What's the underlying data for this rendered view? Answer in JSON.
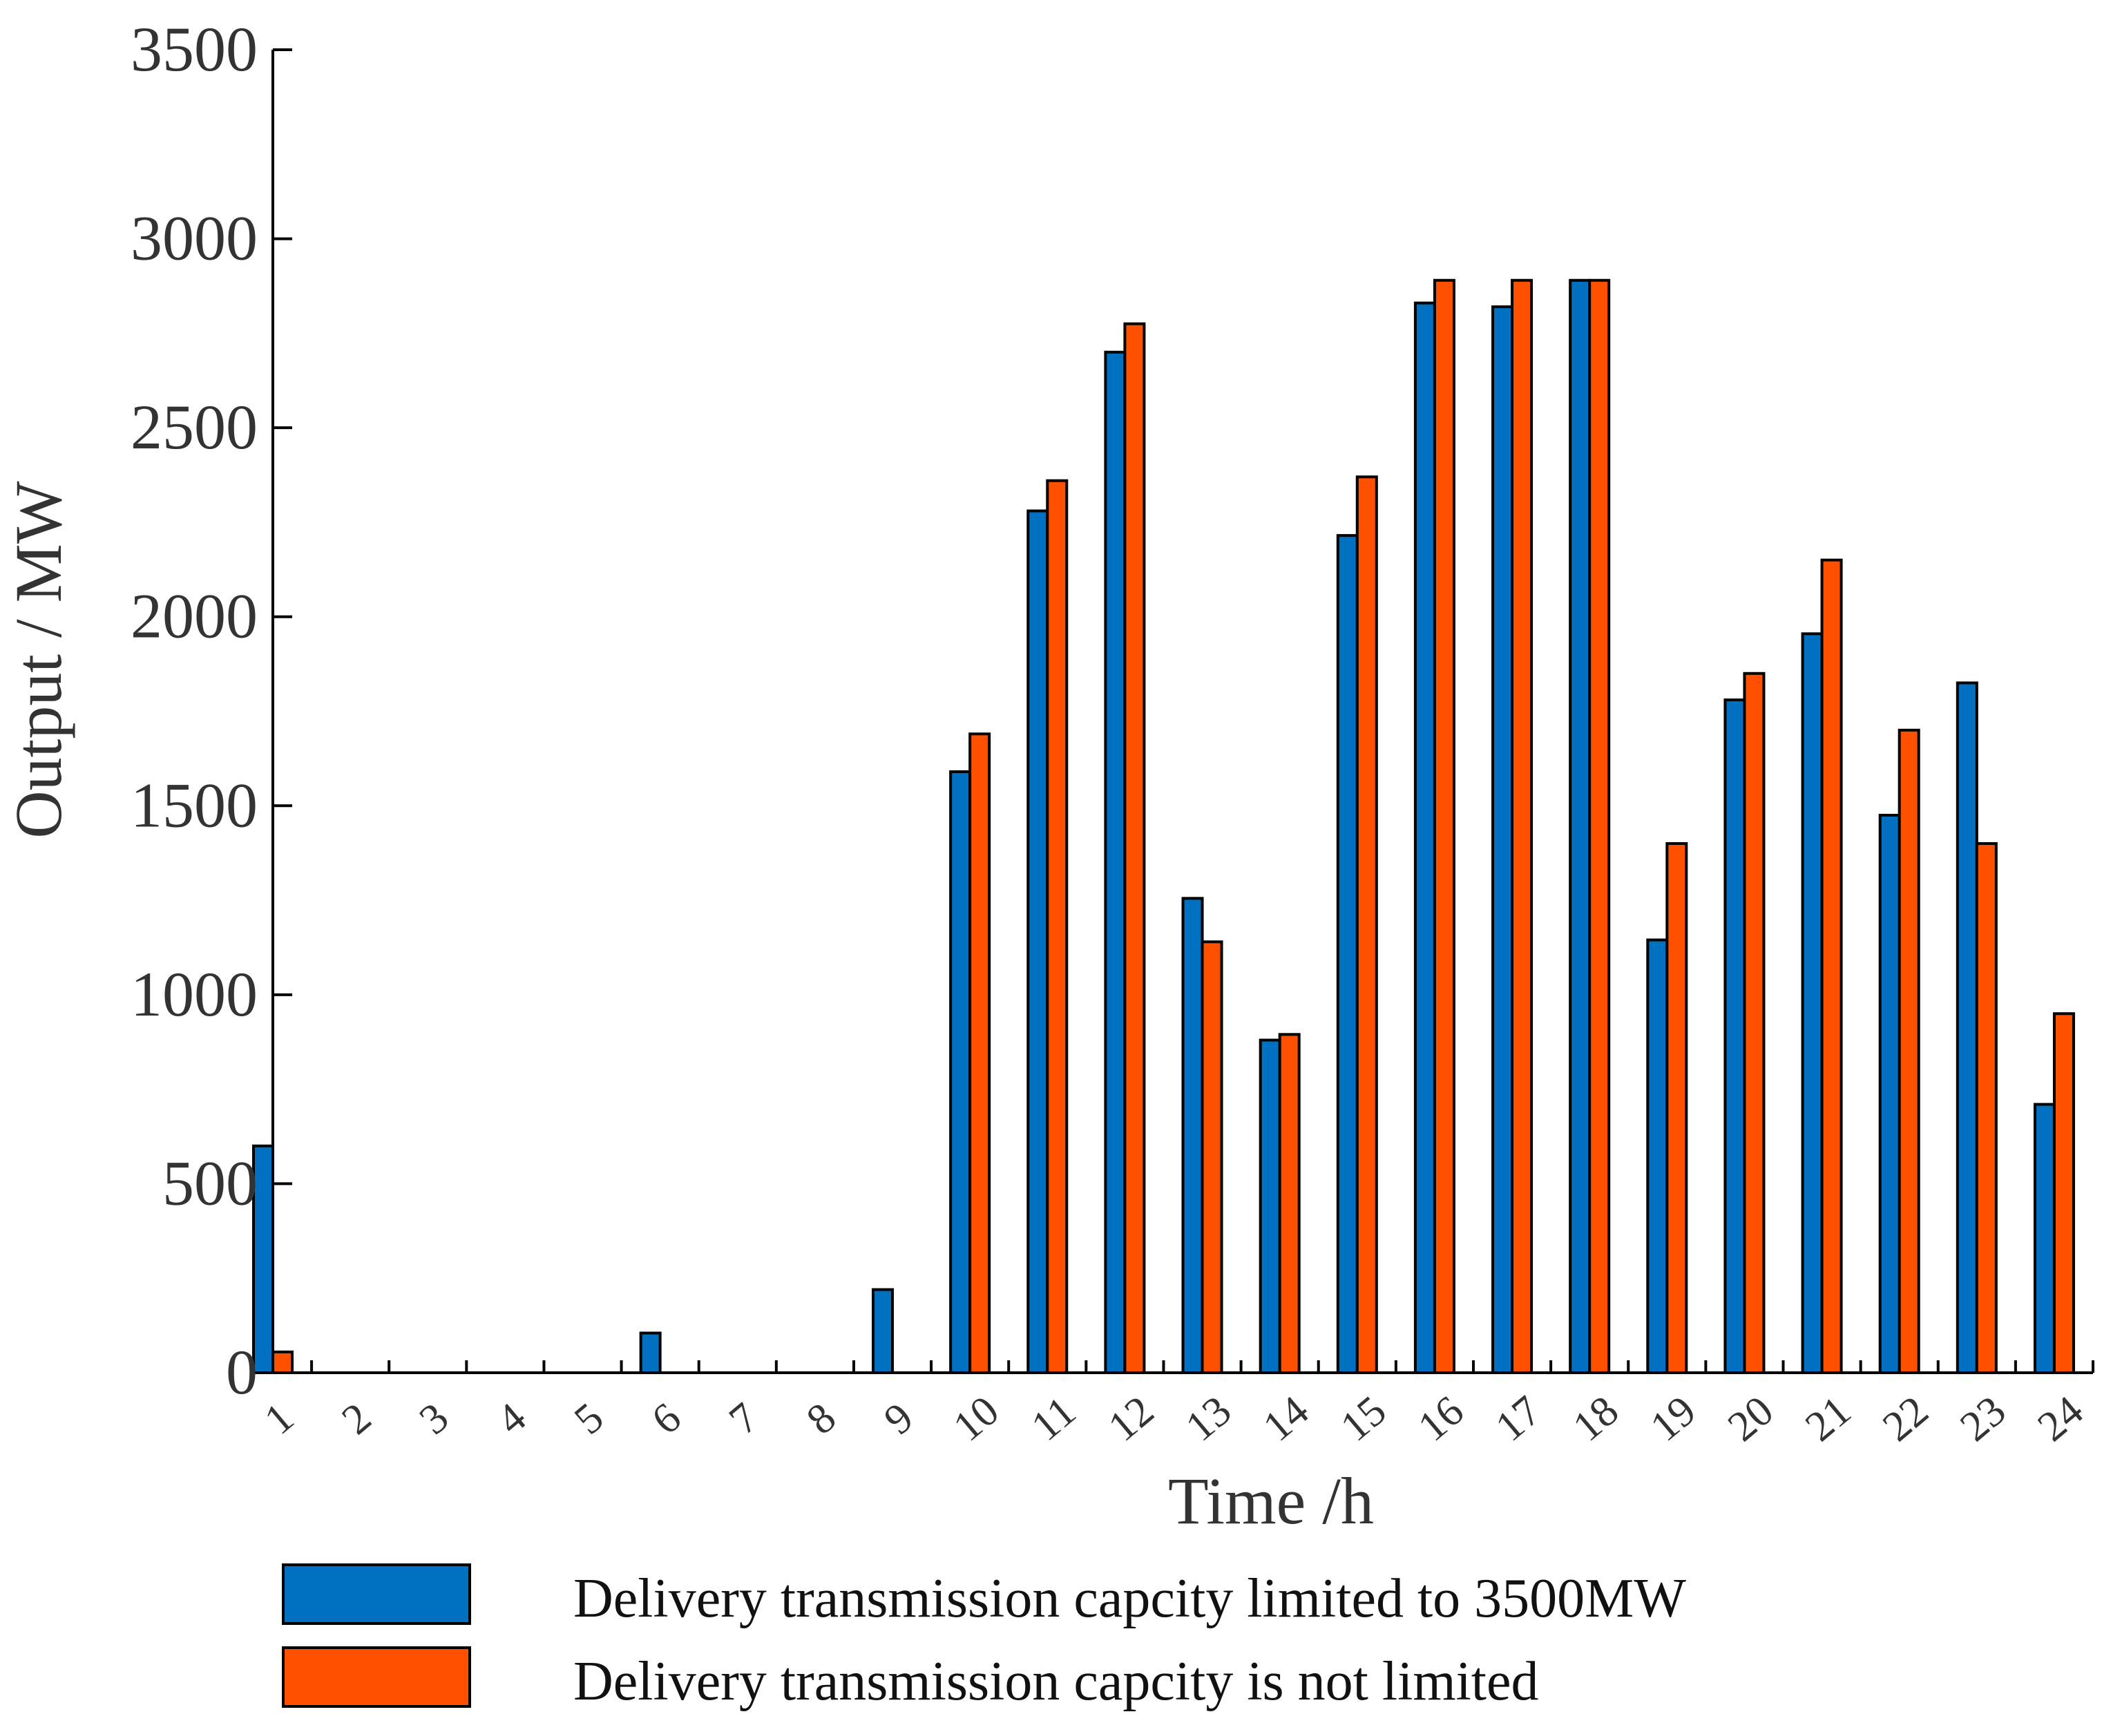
{
  "chart_data": {
    "type": "bar",
    "title": "",
    "xlabel": "Time /h",
    "ylabel": "Output / MW",
    "ylim": [
      0,
      3500
    ],
    "yticks": [
      0,
      500,
      1000,
      1500,
      2000,
      2500,
      3000,
      3500
    ],
    "categories": [
      "1",
      "2",
      "3",
      "4",
      "5",
      "6",
      "7",
      "8",
      "9",
      "10",
      "11",
      "12",
      "13",
      "14",
      "15",
      "16",
      "17",
      "18",
      "19",
      "20",
      "21",
      "22",
      "23",
      "24"
    ],
    "series": [
      {
        "name": "Delivery transmission capcity limited to 3500MW",
        "color": "#0070C0",
        "values": [
          600,
          0,
          0,
          0,
          0,
          105,
          0,
          0,
          220,
          1590,
          2280,
          2700,
          1255,
          880,
          2215,
          2830,
          2820,
          2890,
          1145,
          1780,
          1955,
          1475,
          1825,
          710
        ]
      },
      {
        "name": "Delivery transmission capcity is not limited",
        "color": "#FF5000",
        "values": [
          55,
          0,
          0,
          0,
          0,
          0,
          0,
          0,
          0,
          1690,
          2360,
          2775,
          1140,
          895,
          2370,
          2890,
          2890,
          2890,
          1400,
          1850,
          2150,
          1700,
          1400,
          950
        ]
      }
    ],
    "legend_position": "bottom"
  }
}
